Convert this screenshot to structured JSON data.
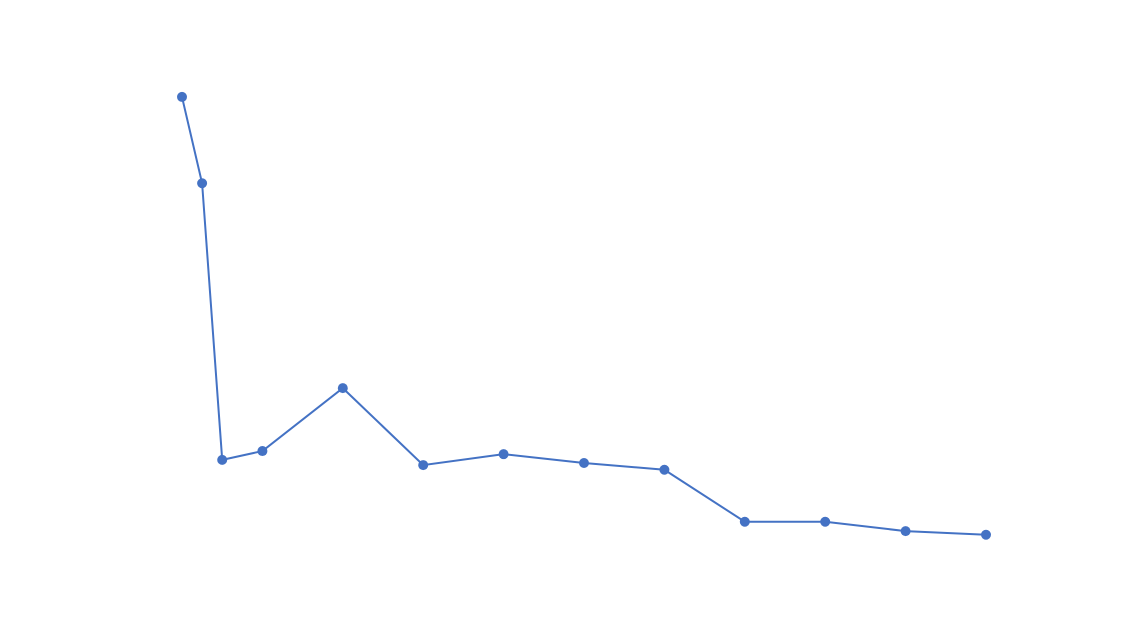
{
  "chart_data": {
    "type": "line",
    "x": [
      0,
      1,
      2,
      4,
      8,
      12,
      16,
      20,
      24,
      28,
      32,
      36,
      40
    ],
    "series": [
      {
        "color": "#4472c4",
        "values": [
          92.9,
          76.3,
          23.1,
          24.8,
          36.9,
          22.1,
          24.2,
          22.5,
          21.2,
          11.2,
          11.2,
          9.4,
          8.7
        ]
      }
    ],
    "xlim": [
      0,
      40
    ],
    "ylim": [
      0,
      100
    ],
    "grid": false
  }
}
